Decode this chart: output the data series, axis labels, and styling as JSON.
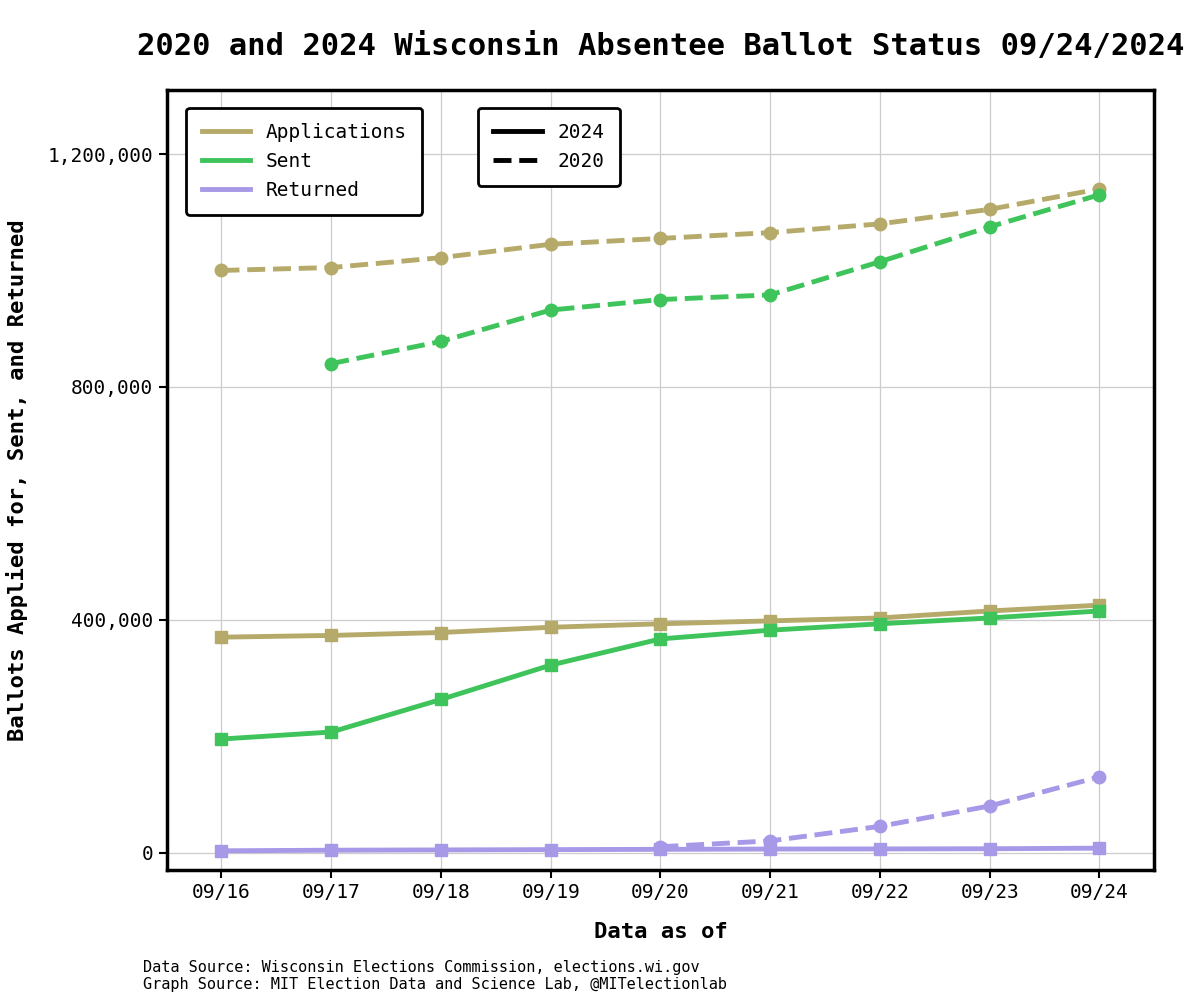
{
  "title": "2020 and 2024 Wisconsin Absentee Ballot Status 09/24/2024",
  "xlabel": "Data as of",
  "ylabel": "Ballots Applied for, Sent, and Returned",
  "dates": [
    "09/16",
    "09/17",
    "09/18",
    "09/19",
    "09/20",
    "09/21",
    "09/22",
    "09/23",
    "09/24"
  ],
  "applications_2024": [
    370000,
    373000,
    378000,
    387000,
    393000,
    398000,
    403000,
    415000,
    425000
  ],
  "sent_2024": [
    195000,
    207000,
    263000,
    322000,
    367000,
    382000,
    393000,
    403000,
    415000
  ],
  "returned_2024": [
    3000,
    4000,
    4500,
    5000,
    5500,
    6000,
    6200,
    6500,
    7500
  ],
  "applications_2020": [
    1000000,
    1005000,
    1022000,
    1045000,
    1055000,
    1065000,
    1080000,
    1105000,
    1140000
  ],
  "sent_2020": [
    null,
    840000,
    878000,
    932000,
    950000,
    958000,
    1015000,
    1075000,
    1130000
  ],
  "returned_2020": [
    null,
    null,
    null,
    null,
    10000,
    20000,
    45000,
    80000,
    130000
  ],
  "color_applications": "#b5aa6a",
  "color_sent": "#3ec45a",
  "color_returned": "#a898e8",
  "ylim_min": -30000,
  "ylim_max": 1310000,
  "yticks": [
    0,
    400000,
    800000,
    1200000
  ],
  "ytick_labels": [
    "0",
    "400,000",
    "800,000",
    "1,200,000"
  ],
  "footnote1": "Data Source: Wisconsin Elections Commission, elections.wi.gov",
  "footnote2": "Graph Source: MIT Election Data and Science Lab, @MITelectionlab",
  "title_fontsize": 22,
  "axis_label_fontsize": 16,
  "tick_fontsize": 14,
  "legend_fontsize": 14,
  "footnote_fontsize": 11,
  "linewidth_solid": 3.5,
  "markersize": 9
}
